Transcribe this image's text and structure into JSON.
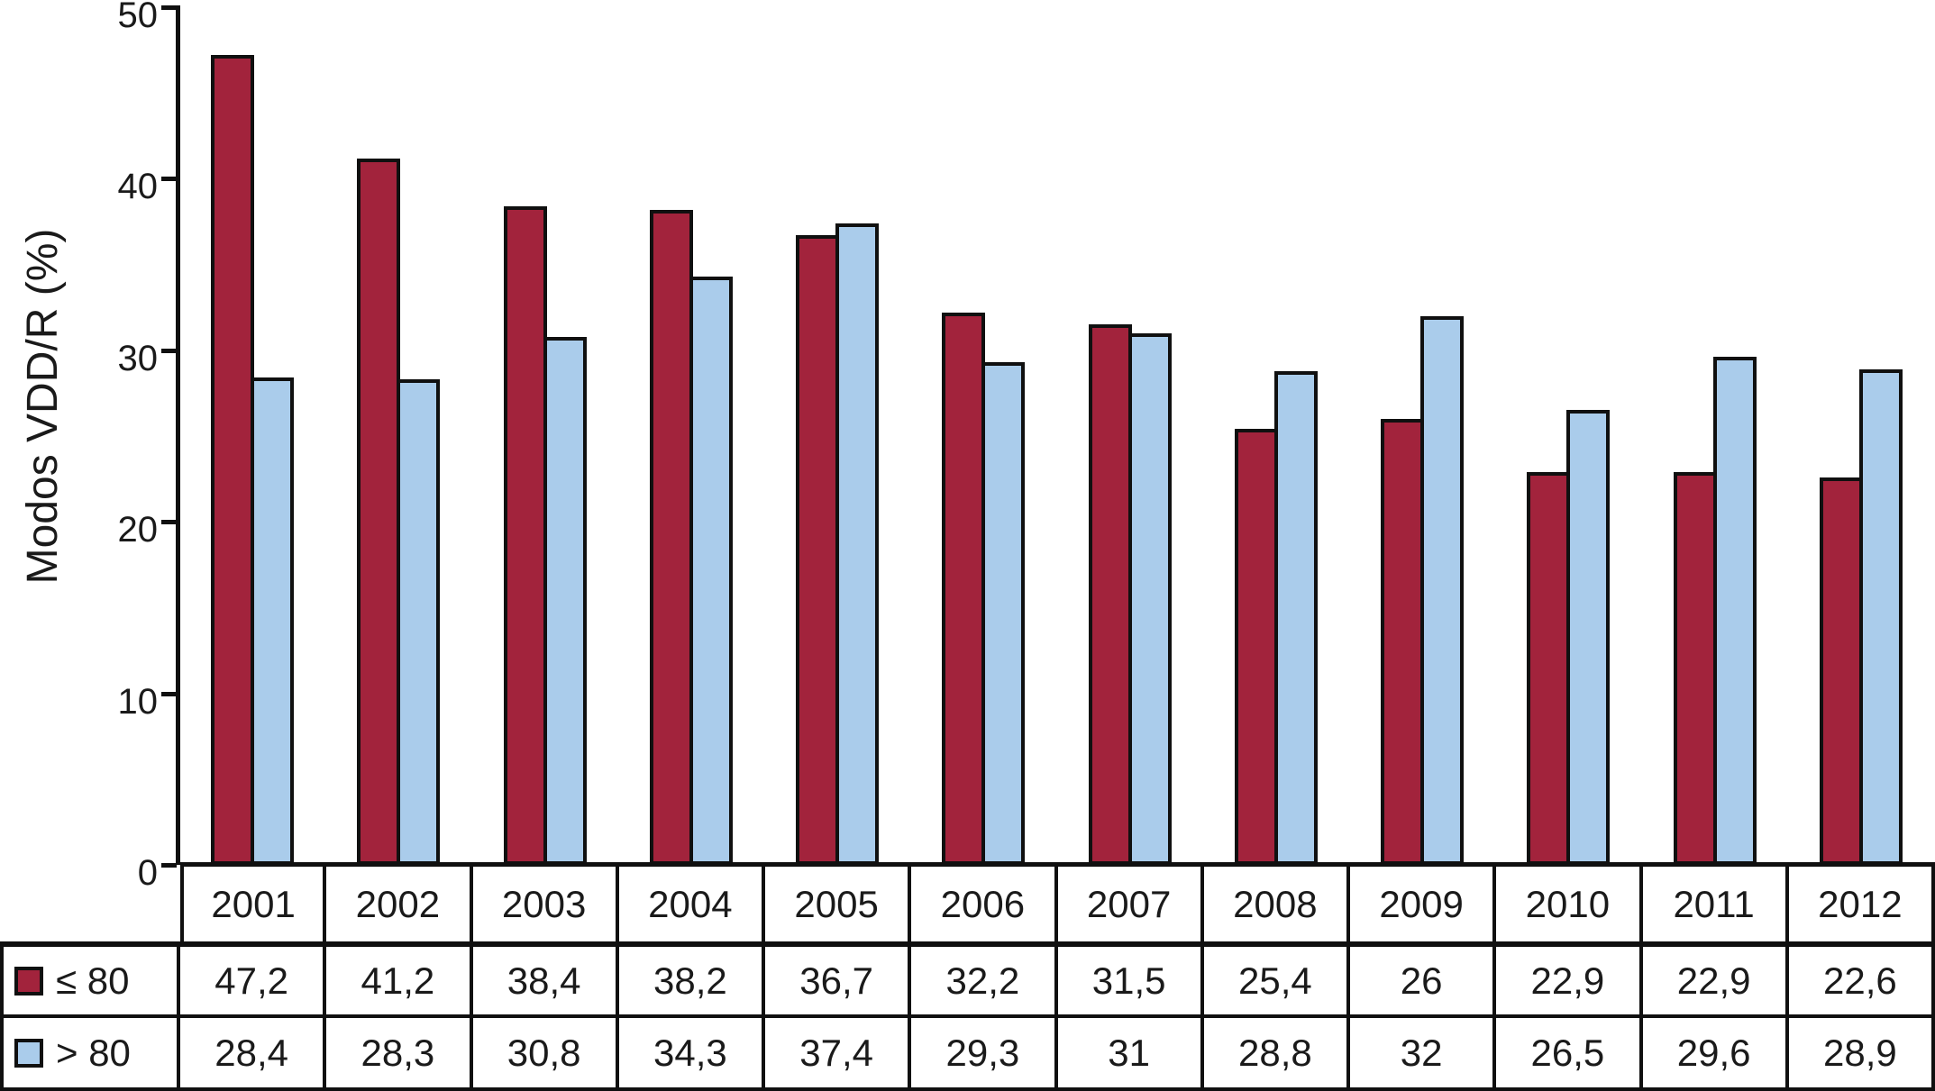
{
  "chart_data": {
    "type": "bar",
    "title": "",
    "xlabel": "",
    "ylabel": "Modos VDD/R (%)",
    "ylim": [
      0,
      50
    ],
    "yticks": [
      "0",
      "10",
      "20",
      "30",
      "40",
      "50"
    ],
    "grid": false,
    "legend_position": "table-left",
    "categories": [
      "2001",
      "2002",
      "2003",
      "2004",
      "2005",
      "2006",
      "2007",
      "2008",
      "2009",
      "2010",
      "2011",
      "2012"
    ],
    "series": [
      {
        "name": "≤ 80",
        "color": "#A2233C",
        "values": [
          47.2,
          41.2,
          38.4,
          38.2,
          36.7,
          32.2,
          31.5,
          25.4,
          26,
          22.9,
          22.9,
          22.6
        ],
        "display": [
          "47,2",
          "41,2",
          "38,4",
          "38,2",
          "36,7",
          "32,2",
          "31,5",
          "25,4",
          "26",
          "22,9",
          "22,9",
          "22,6"
        ]
      },
      {
        "name": "> 80",
        "color": "#AACCEB",
        "values": [
          28.4,
          28.3,
          30.8,
          34.3,
          37.4,
          29.3,
          31,
          28.8,
          32,
          26.5,
          29.6,
          28.9
        ],
        "display": [
          "28,4",
          "28,3",
          "30,8",
          "34,3",
          "37,4",
          "29,3",
          "31",
          "28,8",
          "32",
          "26,5",
          "29,6",
          "28,9"
        ]
      }
    ]
  },
  "colors": {
    "axis": "#101010",
    "text": "#1a1a1a",
    "series1": "#A2233C",
    "series2": "#AACCEB"
  }
}
